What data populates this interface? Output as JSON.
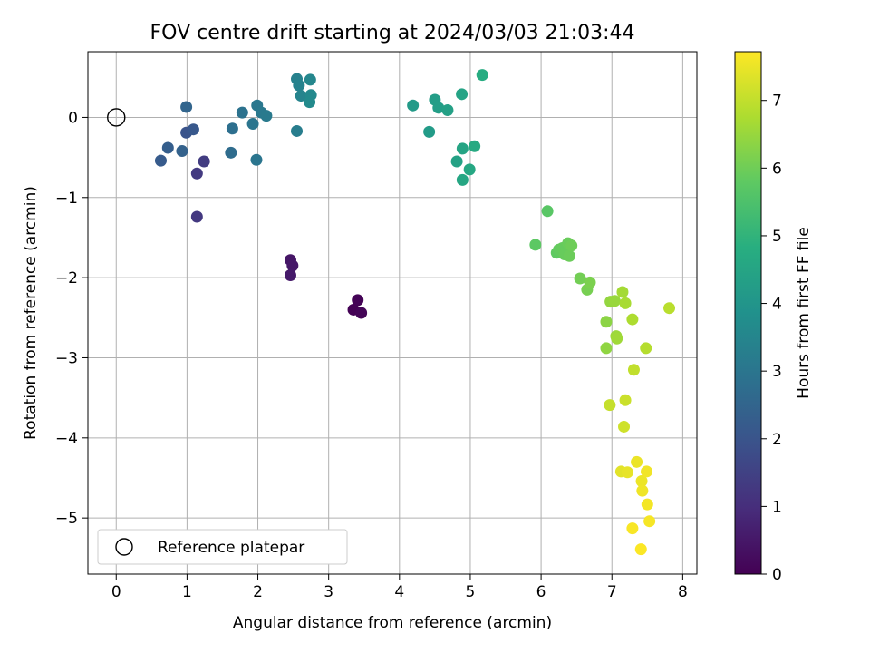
{
  "chart_data": {
    "type": "scatter",
    "title": "FOV centre drift starting at 2024/03/03 21:03:44",
    "xlabel": "Angular distance from reference (arcmin)",
    "ylabel": "Rotation from reference (arcmin)",
    "xlim": [
      -0.4,
      8.2
    ],
    "ylim": [
      -5.7,
      0.82
    ],
    "xticks": [
      0,
      1,
      2,
      3,
      4,
      5,
      6,
      7,
      8
    ],
    "yticks": [
      0,
      -1,
      -2,
      -3,
      -4,
      -5
    ],
    "xtick_labels": [
      "0",
      "1",
      "2",
      "3",
      "4",
      "5",
      "6",
      "7",
      "8"
    ],
    "ytick_labels": [
      "0",
      "−1",
      "−2",
      "−3",
      "−4",
      "−5"
    ],
    "grid": true,
    "legend": {
      "placement": "lower-left",
      "label": "Reference platepar"
    },
    "reference_point": {
      "x": 0,
      "y": 0
    },
    "colorbar": {
      "label": "Hours from first FF file",
      "min": 0,
      "max": 7.72,
      "ticks": [
        0,
        1,
        2,
        3,
        4,
        5,
        6,
        7
      ],
      "tick_labels": [
        "0",
        "1",
        "2",
        "3",
        "4",
        "5",
        "6",
        "7"
      ],
      "colormap": "viridis"
    },
    "points": [
      {
        "x": 3.35,
        "y": -2.4,
        "t": 0.02
      },
      {
        "x": 3.41,
        "y": -2.28,
        "t": 0.05
      },
      {
        "x": 3.46,
        "y": -2.44,
        "t": 0.08
      },
      {
        "x": 2.46,
        "y": -1.78,
        "t": 0.45
      },
      {
        "x": 2.49,
        "y": -1.85,
        "t": 0.5
      },
      {
        "x": 2.46,
        "y": -1.97,
        "t": 0.55
      },
      {
        "x": 1.14,
        "y": -1.24,
        "t": 1.25
      },
      {
        "x": 1.14,
        "y": -0.7,
        "t": 1.3
      },
      {
        "x": 1.24,
        "y": -0.55,
        "t": 1.35
      },
      {
        "x": 0.99,
        "y": -0.19,
        "t": 2.0
      },
      {
        "x": 1.09,
        "y": -0.15,
        "t": 2.1
      },
      {
        "x": 0.63,
        "y": -0.54,
        "t": 2.2
      },
      {
        "x": 0.73,
        "y": -0.38,
        "t": 2.3
      },
      {
        "x": 0.93,
        "y": -0.42,
        "t": 2.4
      },
      {
        "x": 0.99,
        "y": 0.13,
        "t": 2.5
      },
      {
        "x": 1.62,
        "y": -0.44,
        "t": 2.7
      },
      {
        "x": 1.64,
        "y": -0.14,
        "t": 2.8
      },
      {
        "x": 1.78,
        "y": 0.06,
        "t": 2.9
      },
      {
        "x": 1.93,
        "y": -0.08,
        "t": 3.0
      },
      {
        "x": 1.99,
        "y": 0.15,
        "t": 3.05
      },
      {
        "x": 2.05,
        "y": 0.06,
        "t": 3.1
      },
      {
        "x": 2.12,
        "y": 0.02,
        "t": 3.15
      },
      {
        "x": 1.98,
        "y": -0.53,
        "t": 3.0
      },
      {
        "x": 2.55,
        "y": -0.17,
        "t": 3.25
      },
      {
        "x": 2.55,
        "y": 0.48,
        "t": 3.35
      },
      {
        "x": 2.58,
        "y": 0.4,
        "t": 3.4
      },
      {
        "x": 2.61,
        "y": 0.27,
        "t": 3.45
      },
      {
        "x": 2.74,
        "y": 0.47,
        "t": 3.55
      },
      {
        "x": 2.75,
        "y": 0.28,
        "t": 3.6
      },
      {
        "x": 2.73,
        "y": 0.19,
        "t": 3.65
      },
      {
        "x": 4.19,
        "y": 0.15,
        "t": 4.15
      },
      {
        "x": 4.42,
        "y": -0.18,
        "t": 4.2
      },
      {
        "x": 4.5,
        "y": 0.22,
        "t": 4.25
      },
      {
        "x": 4.55,
        "y": 0.12,
        "t": 4.3
      },
      {
        "x": 4.68,
        "y": 0.09,
        "t": 4.35
      },
      {
        "x": 4.81,
        "y": -0.55,
        "t": 4.4
      },
      {
        "x": 4.88,
        "y": 0.29,
        "t": 4.45
      },
      {
        "x": 4.89,
        "y": -0.39,
        "t": 4.5
      },
      {
        "x": 4.89,
        "y": -0.78,
        "t": 4.55
      },
      {
        "x": 4.99,
        "y": -0.65,
        "t": 4.6
      },
      {
        "x": 5.06,
        "y": -0.36,
        "t": 4.65
      },
      {
        "x": 5.17,
        "y": 0.53,
        "t": 4.75
      },
      {
        "x": 6.09,
        "y": -1.17,
        "t": 5.7
      },
      {
        "x": 5.92,
        "y": -1.59,
        "t": 5.75
      },
      {
        "x": 6.22,
        "y": -1.69,
        "t": 5.8
      },
      {
        "x": 6.25,
        "y": -1.65,
        "t": 5.85
      },
      {
        "x": 6.3,
        "y": -1.63,
        "t": 5.88
      },
      {
        "x": 6.33,
        "y": -1.71,
        "t": 5.9
      },
      {
        "x": 6.38,
        "y": -1.57,
        "t": 5.92
      },
      {
        "x": 6.4,
        "y": -1.73,
        "t": 5.95
      },
      {
        "x": 6.43,
        "y": -1.6,
        "t": 5.98
      },
      {
        "x": 6.55,
        "y": -2.01,
        "t": 6.05
      },
      {
        "x": 6.65,
        "y": -2.15,
        "t": 6.1
      },
      {
        "x": 6.69,
        "y": -2.06,
        "t": 6.15
      },
      {
        "x": 6.92,
        "y": -2.55,
        "t": 6.35
      },
      {
        "x": 6.92,
        "y": -2.88,
        "t": 6.4
      },
      {
        "x": 6.98,
        "y": -2.3,
        "t": 6.45
      },
      {
        "x": 7.04,
        "y": -2.29,
        "t": 6.5
      },
      {
        "x": 7.06,
        "y": -2.73,
        "t": 6.55
      },
      {
        "x": 7.07,
        "y": -2.76,
        "t": 6.6
      },
      {
        "x": 7.15,
        "y": -2.18,
        "t": 6.65
      },
      {
        "x": 7.19,
        "y": -2.32,
        "t": 6.7
      },
      {
        "x": 7.29,
        "y": -2.52,
        "t": 6.75
      },
      {
        "x": 7.48,
        "y": -2.88,
        "t": 6.85
      },
      {
        "x": 7.81,
        "y": -2.38,
        "t": 6.9
      },
      {
        "x": 7.31,
        "y": -3.15,
        "t": 7.0
      },
      {
        "x": 6.97,
        "y": -3.59,
        "t": 7.05
      },
      {
        "x": 7.19,
        "y": -3.53,
        "t": 7.1
      },
      {
        "x": 7.17,
        "y": -3.86,
        "t": 7.15
      },
      {
        "x": 7.13,
        "y": -4.42,
        "t": 7.4
      },
      {
        "x": 7.22,
        "y": -4.43,
        "t": 7.45
      },
      {
        "x": 7.35,
        "y": -4.3,
        "t": 7.5
      },
      {
        "x": 7.42,
        "y": -4.54,
        "t": 7.52
      },
      {
        "x": 7.43,
        "y": -4.66,
        "t": 7.55
      },
      {
        "x": 7.49,
        "y": -4.42,
        "t": 7.58
      },
      {
        "x": 7.5,
        "y": -4.83,
        "t": 7.6
      },
      {
        "x": 7.53,
        "y": -5.04,
        "t": 7.63
      },
      {
        "x": 7.29,
        "y": -5.13,
        "t": 7.66
      },
      {
        "x": 7.41,
        "y": -5.39,
        "t": 7.7
      }
    ]
  }
}
